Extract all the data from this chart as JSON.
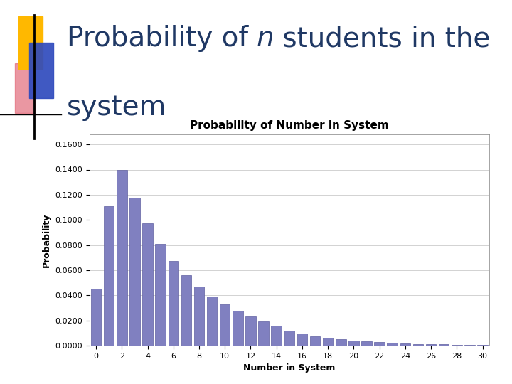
{
  "title": "Probability of Number in System",
  "xlabel": "Number in System",
  "ylabel": "Probability",
  "bar_color": "#8080C0",
  "bar_edge_color": "#6060A0",
  "values": [
    0.045,
    0.111,
    0.14,
    0.1175,
    0.0975,
    0.081,
    0.0675,
    0.056,
    0.047,
    0.039,
    0.033,
    0.0275,
    0.023,
    0.019,
    0.0158,
    0.012,
    0.0095,
    0.0075,
    0.006,
    0.005,
    0.0042,
    0.0034,
    0.0028,
    0.0022,
    0.0018,
    0.0014,
    0.0011,
    0.0009,
    0.0007,
    0.0005,
    0.0004
  ],
  "n_values": [
    0,
    1,
    2,
    3,
    4,
    5,
    6,
    7,
    8,
    9,
    10,
    11,
    12,
    13,
    14,
    15,
    16,
    17,
    18,
    19,
    20,
    21,
    22,
    23,
    24,
    25,
    26,
    27,
    28,
    29,
    30
  ],
  "yticks": [
    0.0,
    0.02,
    0.04,
    0.06,
    0.08,
    0.1,
    0.12,
    0.14,
    0.16
  ],
  "xticks": [
    0,
    2,
    4,
    6,
    8,
    10,
    12,
    14,
    16,
    18,
    20,
    22,
    24,
    26,
    28,
    30
  ],
  "ylim": [
    0,
    0.168
  ],
  "xlim": [
    -0.5,
    30.5
  ],
  "bg_color": "#FFFFFF",
  "chart_bg": "#FFFFFF",
  "grid_color": "#C0C0C0",
  "slide_title_color": "#1F3864",
  "title_fontsize": 11,
  "slide_title_fontsize": 28,
  "axis_label_fontsize": 9,
  "tick_fontsize": 8,
  "deco_yellow": "#FFB800",
  "deco_blue": "#2F4BBD",
  "deco_pink": "#E06070"
}
